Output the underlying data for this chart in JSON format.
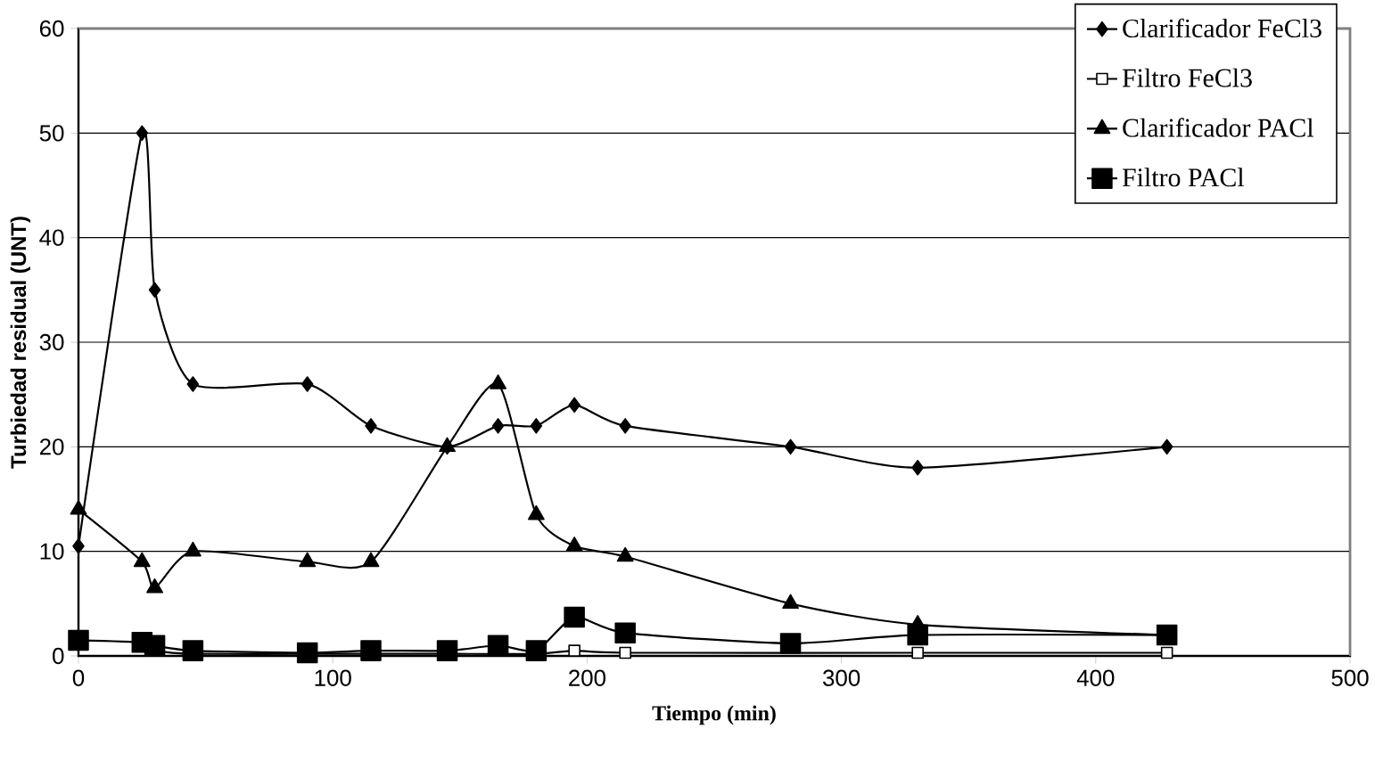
{
  "chart_data": {
    "type": "line",
    "xlabel": "Tiempo (min)",
    "ylabel": "Turbiedad residual (UNT)",
    "xlim": [
      0,
      500
    ],
    "ylim": [
      0,
      60
    ],
    "xticks": [
      0,
      100,
      200,
      300,
      400,
      500
    ],
    "yticks": [
      0,
      10,
      20,
      30,
      40,
      50,
      60
    ],
    "grid": "y",
    "legend": "top right",
    "line_style": "solid",
    "series": [
      {
        "name": "Clarificador FeCl3",
        "color": "#000000",
        "marker": "diamond",
        "x": [
          0,
          25,
          30,
          45,
          90,
          115,
          145,
          165,
          180,
          195,
          215,
          280,
          330,
          428
        ],
        "values": [
          10.5,
          50,
          35,
          26,
          26,
          22,
          20,
          22,
          22,
          24,
          22,
          20,
          18,
          20
        ]
      },
      {
        "name": "Filtro FeCl3",
        "color": "#000000",
        "marker": "square",
        "x": [
          25,
          30,
          45,
          90,
          115,
          145,
          180,
          195,
          215,
          330,
          428
        ],
        "values": [
          1,
          0.5,
          0.2,
          0.2,
          0.2,
          0.2,
          0.2,
          0.5,
          0.3,
          0.3,
          0.3
        ]
      },
      {
        "name": "Clarificador PACl",
        "color": "#000000",
        "marker": "triangle",
        "x": [
          0,
          25,
          30,
          45,
          90,
          115,
          145,
          165,
          180,
          195,
          215,
          280,
          330,
          428
        ],
        "values": [
          14,
          9,
          6.5,
          10,
          9,
          9,
          20,
          26,
          13.5,
          10.5,
          9.5,
          5,
          3,
          2
        ]
      },
      {
        "name": "Filtro PACl",
        "color": "#000000",
        "marker": "square",
        "x": [
          0,
          25,
          30,
          45,
          90,
          115,
          145,
          165,
          180,
          195,
          215,
          280,
          330,
          428
        ],
        "values": [
          1.5,
          1.3,
          1,
          0.5,
          0.3,
          0.5,
          0.5,
          1,
          0.5,
          3.7,
          2.2,
          1.2,
          2,
          2
        ]
      }
    ]
  }
}
